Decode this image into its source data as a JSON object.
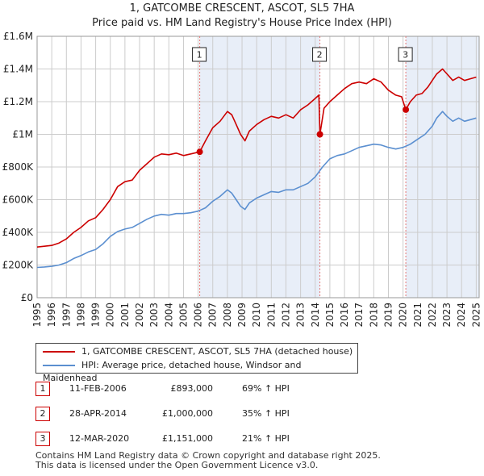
{
  "title_line1": "1, GATCOMBE CRESCENT, ASCOT, SL5 7HA",
  "title_line2": "Price paid vs. HM Land Registry's House Price Index (HPI)",
  "colors": {
    "property": "#cc0000",
    "hpi": "#5b8fd0",
    "shade": "#e8eef8",
    "grid": "#cccccc",
    "vline": "#e57777"
  },
  "chart_data": {
    "type": "line",
    "title": "Price paid vs. HM Land Registry's House Price Index (HPI)",
    "xlabel": "",
    "ylabel": "",
    "xlim": [
      1995,
      2025.2
    ],
    "ylim": [
      0,
      1600000
    ],
    "y_ticks": [
      0,
      200000,
      400000,
      600000,
      800000,
      1000000,
      1200000,
      1400000,
      1600000
    ],
    "y_tick_labels": [
      "£0",
      "£200K",
      "£400K",
      "£600K",
      "£800K",
      "£1M",
      "£1.2M",
      "£1.4M",
      "£1.6M"
    ],
    "x_ticks": [
      1995,
      1996,
      1997,
      1998,
      1999,
      2000,
      2001,
      2002,
      2003,
      2004,
      2005,
      2006,
      2007,
      2008,
      2009,
      2010,
      2011,
      2012,
      2013,
      2014,
      2015,
      2016,
      2017,
      2018,
      2019,
      2020,
      2021,
      2022,
      2023,
      2024,
      2025
    ],
    "x_tick_labels": [
      "1995",
      "1996",
      "1997",
      "1998",
      "1999",
      "2000",
      "2001",
      "2002",
      "2003",
      "2004",
      "2005",
      "2006",
      "2007",
      "2008",
      "2009",
      "2010",
      "2011",
      "2012",
      "2013",
      "2014",
      "2015",
      "2016",
      "2017",
      "2018",
      "2019",
      "2020",
      "2021",
      "2022",
      "2023",
      "2024",
      "2025"
    ],
    "shaded_periods": [
      [
        2006.11,
        2014.32
      ],
      [
        2020.19,
        2025.2
      ]
    ],
    "series": [
      {
        "name": "1, GATCOMBE CRESCENT, ASCOT, SL5 7HA (detached house)",
        "x": [
          1995.0,
          1995.5,
          1996.0,
          1996.5,
          1997.0,
          1997.5,
          1998.0,
          1998.5,
          1999.0,
          1999.5,
          2000.0,
          2000.5,
          2001.0,
          2001.5,
          2002.0,
          2002.5,
          2003.0,
          2003.5,
          2004.0,
          2004.5,
          2005.0,
          2005.5,
          2006.11,
          2006.5,
          2007.0,
          2007.5,
          2008.0,
          2008.3,
          2008.6,
          2008.9,
          2009.2,
          2009.5,
          2010.0,
          2010.5,
          2011.0,
          2011.5,
          2012.0,
          2012.5,
          2013.0,
          2013.5,
          2014.0,
          2014.25,
          2014.32,
          2014.6,
          2015.0,
          2015.5,
          2016.0,
          2016.5,
          2017.0,
          2017.5,
          2018.0,
          2018.5,
          2019.0,
          2019.5,
          2019.9,
          2020.19,
          2020.5,
          2020.9,
          2021.3,
          2021.7,
          2022.0,
          2022.3,
          2022.7,
          2023.0,
          2023.4,
          2023.8,
          2024.2,
          2024.6,
          2025.0
        ],
        "y": [
          310000,
          315000,
          320000,
          335000,
          360000,
          400000,
          430000,
          470000,
          490000,
          540000,
          600000,
          680000,
          710000,
          720000,
          780000,
          820000,
          860000,
          880000,
          875000,
          885000,
          870000,
          880000,
          893000,
          960000,
          1040000,
          1080000,
          1140000,
          1120000,
          1060000,
          1000000,
          960000,
          1020000,
          1060000,
          1090000,
          1110000,
          1100000,
          1120000,
          1100000,
          1150000,
          1180000,
          1220000,
          1240000,
          1000000,
          1160000,
          1200000,
          1240000,
          1280000,
          1310000,
          1320000,
          1310000,
          1340000,
          1320000,
          1270000,
          1240000,
          1230000,
          1151000,
          1200000,
          1240000,
          1250000,
          1290000,
          1330000,
          1370000,
          1400000,
          1370000,
          1330000,
          1350000,
          1330000,
          1340000,
          1350000
        ]
      },
      {
        "name": "HPI: Average price, detached house, Windsor and Maidenhead",
        "x": [
          1995.0,
          1995.5,
          1996.0,
          1996.5,
          1997.0,
          1997.5,
          1998.0,
          1998.5,
          1999.0,
          1999.5,
          2000.0,
          2000.5,
          2001.0,
          2001.5,
          2002.0,
          2002.5,
          2003.0,
          2003.5,
          2004.0,
          2004.5,
          2005.0,
          2005.5,
          2006.0,
          2006.5,
          2007.0,
          2007.5,
          2008.0,
          2008.3,
          2008.6,
          2008.9,
          2009.2,
          2009.5,
          2010.0,
          2010.5,
          2011.0,
          2011.5,
          2012.0,
          2012.5,
          2013.0,
          2013.5,
          2014.0,
          2014.5,
          2015.0,
          2015.5,
          2016.0,
          2016.5,
          2017.0,
          2017.5,
          2018.0,
          2018.5,
          2019.0,
          2019.5,
          2020.0,
          2020.5,
          2021.0,
          2021.5,
          2022.0,
          2022.3,
          2022.7,
          2023.0,
          2023.4,
          2023.8,
          2024.2,
          2024.6,
          2025.0
        ],
        "y": [
          185000,
          188000,
          192000,
          200000,
          215000,
          240000,
          258000,
          280000,
          295000,
          330000,
          375000,
          405000,
          420000,
          430000,
          455000,
          480000,
          500000,
          510000,
          505000,
          515000,
          515000,
          520000,
          530000,
          550000,
          590000,
          620000,
          660000,
          640000,
          600000,
          560000,
          540000,
          580000,
          610000,
          630000,
          650000,
          645000,
          660000,
          660000,
          680000,
          700000,
          740000,
          800000,
          850000,
          870000,
          880000,
          900000,
          920000,
          930000,
          940000,
          935000,
          920000,
          910000,
          920000,
          940000,
          970000,
          1000000,
          1050000,
          1100000,
          1140000,
          1110000,
          1080000,
          1100000,
          1080000,
          1090000,
          1100000
        ]
      }
    ],
    "annotations": [
      {
        "label": "1",
        "x": 2006.11,
        "y": 893000
      },
      {
        "label": "2",
        "x": 2014.32,
        "y": 1000000
      },
      {
        "label": "3",
        "x": 2020.19,
        "y": 1151000
      }
    ]
  },
  "legend": {
    "property_label": "1, GATCOMBE CRESCENT, ASCOT, SL5 7HA (detached house)",
    "hpi_label": "HPI: Average price, detached house, Windsor and Maidenhead"
  },
  "sales": [
    {
      "num": "1",
      "date": "11-FEB-2006",
      "price": "£893,000",
      "hpi": "69% ↑ HPI"
    },
    {
      "num": "2",
      "date": "28-APR-2014",
      "price": "£1,000,000",
      "hpi": "35% ↑ HPI"
    },
    {
      "num": "3",
      "date": "12-MAR-2020",
      "price": "£1,151,000",
      "hpi": "21% ↑ HPI"
    }
  ],
  "footer": {
    "line1": "Contains HM Land Registry data © Crown copyright and database right 2025.",
    "line2": "This data is licensed under the Open Government Licence v3.0."
  }
}
